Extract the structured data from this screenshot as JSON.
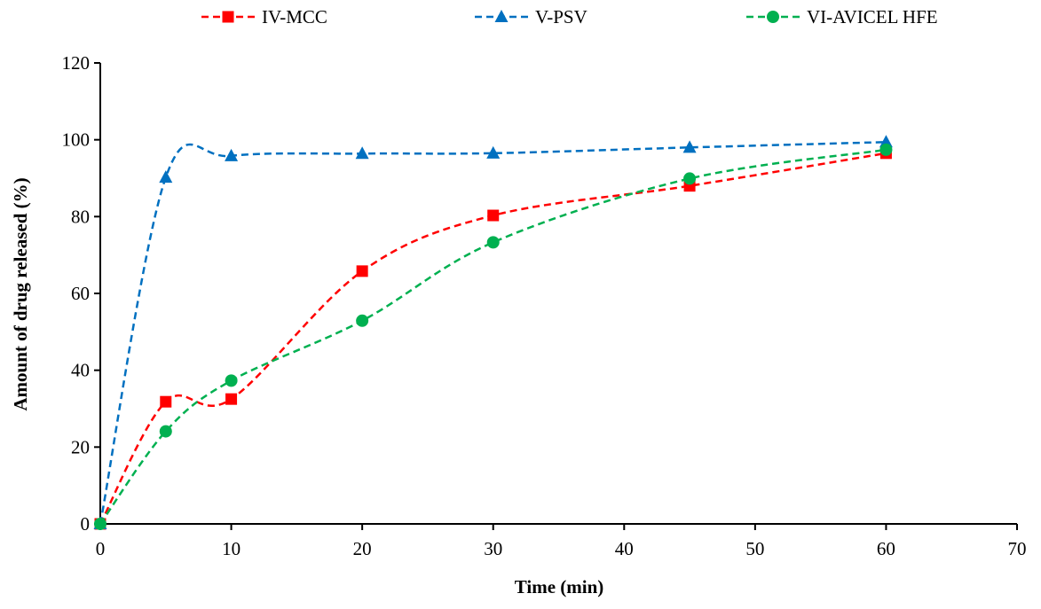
{
  "chart_data": {
    "type": "line",
    "title": "",
    "xlabel": "Time (min)",
    "ylabel": "Amount of drug released (%)",
    "xlim": [
      0,
      70
    ],
    "ylim": [
      0,
      120
    ],
    "x_ticks": [
      "0",
      "10",
      "20",
      "30",
      "40",
      "50",
      "60",
      "70"
    ],
    "y_ticks": [
      "0",
      "20",
      "40",
      "60",
      "80",
      "100",
      "120"
    ],
    "grid": false,
    "legend_position": "top-center",
    "x": [
      0,
      5,
      10,
      20,
      30,
      45,
      60
    ],
    "series": [
      {
        "name": "IV-MCC",
        "color": "#ff0000",
        "marker": "square",
        "line_style": "dashed",
        "values": [
          0,
          31.8,
          32.5,
          65.8,
          80.3,
          88.0,
          96.5
        ]
      },
      {
        "name": "V-PSV",
        "color": "#0070c0",
        "marker": "triangle",
        "line_style": "dashed",
        "values": [
          0,
          90.2,
          95.8,
          96.4,
          96.5,
          98.0,
          99.4
        ]
      },
      {
        "name": "VI-AVICEL HFE",
        "color": "#00b050",
        "marker": "circle",
        "line_style": "dashed",
        "values": [
          0,
          24.1,
          37.3,
          52.9,
          73.3,
          89.9,
          97.4
        ]
      }
    ]
  }
}
